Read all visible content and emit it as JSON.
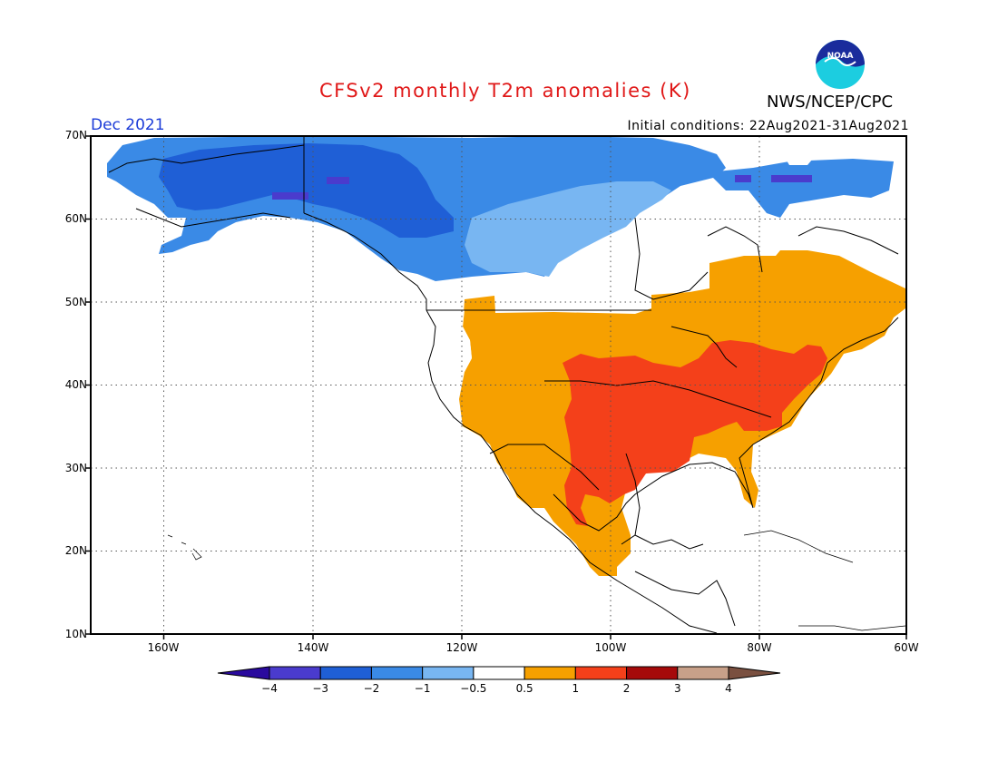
{
  "header": {
    "title": "CFSv2 monthly T2m anomalies (K)",
    "agency": "NWS/NCEP/CPC",
    "logo_text": "NOAA",
    "month": "Dec 2021",
    "initial_conditions": "Initial conditions: 22Aug2021-31Aug2021"
  },
  "map": {
    "region": "North America",
    "projection": "cylindrical",
    "lon_range": [
      -172,
      -60
    ],
    "lat_range": [
      10,
      70
    ],
    "lat_labels": [
      "70N",
      "60N",
      "50N",
      "40N",
      "30N",
      "20N",
      "10N"
    ],
    "lon_labels": [
      "160W",
      "140W",
      "120W",
      "100W",
      "80W",
      "60W"
    ],
    "grid": "dotted"
  },
  "colorbar": {
    "tick_labels": [
      "−4",
      "−3",
      "−2",
      "−1",
      "−0.5",
      "0.5",
      "1",
      "2",
      "3",
      "4"
    ],
    "colors": [
      "#2a0a9e",
      "#4a3bcd",
      "#1f5fd6",
      "#3a8ae6",
      "#78b6f2",
      "#ffffff",
      "#f6a000",
      "#f4401a",
      "#a50a0a",
      "#c8a089",
      "#7a5040"
    ]
  },
  "anomaly_regions": [
    {
      "label": "Alaska and northern Canada",
      "category": "-2 to -1",
      "color": "#3a8ae6"
    },
    {
      "label": "Alaska interior, Yukon, Northwest Territories",
      "category": "-3 to -2",
      "color": "#1f5fd6"
    },
    {
      "label": "southeastern Alaska and Canadian shield edge",
      "category": "-1 to -0.5",
      "color": "#78b6f2"
    },
    {
      "label": "patches in Alaska and Baffin region",
      "category": "-4 to -3",
      "color": "#4a3bcd"
    },
    {
      "label": "western and eastern United States, southern Canada, Mexico",
      "category": "0.5 to 1",
      "color": "#f6a000"
    },
    {
      "label": "central and eastern United States, Texas, Great Lakes, Northeast",
      "category": "1 to 2",
      "color": "#f4401a"
    }
  ]
}
